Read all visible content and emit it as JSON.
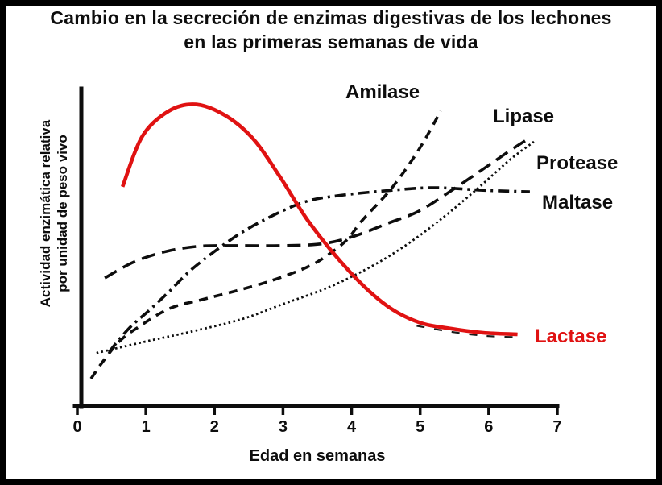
{
  "chart_data": {
    "type": "line",
    "title": "Cambio en la secreción de enzimas digestivas de los lechones en las primeras semanas de vida",
    "title_lines": [
      "Cambio en la secreción de enzimas digestivas de los lechones",
      "en las primeras semanas de vida"
    ],
    "xlabel": "Edad en semanas",
    "ylabel": "Actividad enzimática relativa por unidad de peso vivo",
    "ylabel_lines": [
      "Actividad enzimática relativa",
      "por unidad de peso vivo"
    ],
    "x_ticks": [
      0,
      1,
      2,
      3,
      4,
      5,
      6,
      7
    ],
    "xlim": [
      0,
      7
    ],
    "ylim": [
      0,
      100
    ],
    "y_axis_numeric_labels": false,
    "grid": false,
    "legend_position": "labels next to curve ends",
    "accent_color": "#e01212",
    "line_color": "#0d0d0d",
    "series": [
      {
        "name": "amilase",
        "label": "Amilase",
        "color": "#0d0d0d",
        "dash": "11 8",
        "width": 3.6,
        "style": "dashed",
        "points": [
          [
            0.2,
            8.4
          ],
          [
            0.38,
            14.0
          ],
          [
            0.61,
            20.1
          ],
          [
            0.87,
            24.4
          ],
          [
            1.34,
            30.5
          ],
          [
            1.81,
            33.3
          ],
          [
            2.28,
            35.9
          ],
          [
            2.81,
            39.2
          ],
          [
            3.34,
            43.5
          ],
          [
            3.63,
            47.1
          ],
          [
            3.93,
            52.2
          ],
          [
            4.16,
            58.5
          ],
          [
            4.59,
            68.7
          ],
          [
            4.98,
            80.7
          ],
          [
            5.3,
            92.9
          ]
        ]
      },
      {
        "name": "maltase",
        "label": "Maltase",
        "color": "#0d0d0d",
        "dash": "14 6 3 6",
        "width": 3.6,
        "style": "dash-dot",
        "points": [
          [
            0.46,
            16.8
          ],
          [
            0.75,
            24.2
          ],
          [
            1.05,
            30.0
          ],
          [
            1.34,
            35.9
          ],
          [
            1.69,
            43.3
          ],
          [
            2.28,
            52.9
          ],
          [
            2.75,
            58.8
          ],
          [
            3.3,
            64.1
          ],
          [
            3.81,
            66.2
          ],
          [
            4.59,
            67.9
          ],
          [
            5.21,
            68.7
          ],
          [
            5.92,
            67.9
          ],
          [
            6.6,
            67.4
          ]
        ]
      },
      {
        "name": "lipase",
        "label": "Lipase",
        "color": "#0d0d0d",
        "dash": "17 9",
        "width": 3.6,
        "style": "long-dashed",
        "points": [
          [
            0.4,
            40.2
          ],
          [
            0.83,
            45.3
          ],
          [
            1.3,
            48.6
          ],
          [
            1.77,
            50.2
          ],
          [
            2.28,
            50.4
          ],
          [
            2.98,
            50.4
          ],
          [
            3.57,
            51.0
          ],
          [
            4.04,
            53.4
          ],
          [
            4.51,
            57.3
          ],
          [
            4.98,
            61.3
          ],
          [
            5.45,
            67.7
          ],
          [
            5.92,
            74.6
          ],
          [
            6.33,
            80.7
          ],
          [
            6.62,
            84.7
          ]
        ]
      },
      {
        "name": "protease",
        "label": "Protease",
        "color": "#0d0d0d",
        "dash": "2.5 3.5",
        "width": 2.8,
        "style": "dotted",
        "points": [
          [
            0.28,
            16.5
          ],
          [
            0.99,
            20.1
          ],
          [
            1.69,
            23.4
          ],
          [
            2.4,
            27.2
          ],
          [
            2.98,
            31.8
          ],
          [
            3.57,
            36.4
          ],
          [
            4.01,
            40.7
          ],
          [
            4.51,
            46.6
          ],
          [
            4.98,
            53.4
          ],
          [
            5.45,
            61.3
          ],
          [
            5.92,
            70.0
          ],
          [
            6.33,
            77.9
          ],
          [
            6.66,
            83.2
          ]
        ]
      },
      {
        "name": "lactase",
        "label": "Lactase",
        "color": "#e01212",
        "dash": "",
        "width": 4.6,
        "style": "solid",
        "points": [
          [
            0.66,
            69.0
          ],
          [
            0.95,
            85.0
          ],
          [
            1.34,
            93.0
          ],
          [
            1.73,
            95.0
          ],
          [
            2.16,
            91.5
          ],
          [
            2.57,
            84.0
          ],
          [
            2.96,
            72.0
          ],
          [
            3.39,
            57.5
          ],
          [
            3.98,
            42.0
          ],
          [
            4.51,
            31.5
          ],
          [
            4.98,
            26.2
          ],
          [
            5.45,
            24.2
          ],
          [
            5.92,
            22.9
          ],
          [
            6.42,
            22.4
          ]
        ]
      },
      {
        "name": "lactase-scan-artifact",
        "label": "",
        "color": "#1a1a1a",
        "dash": "10 12",
        "width": 2.2,
        "style": "dashed",
        "points": [
          [
            4.95,
            25.1
          ],
          [
            5.45,
            23.2
          ],
          [
            5.95,
            21.9
          ],
          [
            6.4,
            21.5
          ]
        ]
      }
    ]
  }
}
